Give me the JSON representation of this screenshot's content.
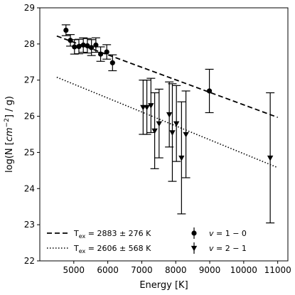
{
  "chart_data": {
    "type": "scatter",
    "xlabel": "Energy [K]",
    "ylabel": "log(N [cm⁻²] / g)",
    "ylabel_parts": {
      "pre": "log(N [",
      "cm": "cm",
      "sup": "−2",
      "post": "] / g)"
    },
    "xlim": [
      4000,
      11300
    ],
    "ylim": [
      22,
      29
    ],
    "xticks": [
      5000,
      6000,
      7000,
      8000,
      9000,
      10000,
      11000
    ],
    "yticks": [
      22,
      23,
      24,
      25,
      26,
      27,
      28,
      29
    ],
    "series": [
      {
        "name": "v = 1 − 0",
        "legend": {
          "italic": "v",
          "rest": " = 1 − 0"
        },
        "marker": "circle",
        "points": [
          {
            "x": 4770,
            "y": 28.38,
            "err": 0.15
          },
          {
            "x": 4900,
            "y": 28.1,
            "err": 0.16
          },
          {
            "x": 5020,
            "y": 27.92,
            "err": 0.2
          },
          {
            "x": 5150,
            "y": 27.93,
            "err": 0.2
          },
          {
            "x": 5280,
            "y": 27.97,
            "err": 0.2
          },
          {
            "x": 5400,
            "y": 27.95,
            "err": 0.2
          },
          {
            "x": 5520,
            "y": 27.9,
            "err": 0.22
          },
          {
            "x": 5650,
            "y": 27.97,
            "err": 0.2
          },
          {
            "x": 5790,
            "y": 27.72,
            "err": 0.2
          },
          {
            "x": 5970,
            "y": 27.78,
            "err": 0.2
          },
          {
            "x": 6140,
            "y": 27.48,
            "err": 0.22
          },
          {
            "x": 8990,
            "y": 26.7,
            "err": 0.6
          }
        ]
      },
      {
        "name": "v = 2 − 1",
        "legend": {
          "italic": "v",
          "rest": " = 2 − 1"
        },
        "marker": "triangle-down",
        "points": [
          {
            "x": 7040,
            "y": 26.25,
            "err": 0.75
          },
          {
            "x": 7150,
            "y": 26.25,
            "err": 0.75
          },
          {
            "x": 7270,
            "y": 26.3,
            "err": 0.75
          },
          {
            "x": 7380,
            "y": 25.6,
            "err": 1.05
          },
          {
            "x": 7510,
            "y": 25.8,
            "err": 0.95
          },
          {
            "x": 7810,
            "y": 26.05,
            "err": 0.9
          },
          {
            "x": 7900,
            "y": 25.55,
            "err": 1.35
          },
          {
            "x": 8020,
            "y": 25.8,
            "err": 1.05
          },
          {
            "x": 8170,
            "y": 24.85,
            "err": 1.55
          },
          {
            "x": 8300,
            "y": 25.5,
            "err": 1.2
          },
          {
            "x": 10780,
            "y": 24.85,
            "err": 1.8
          }
        ]
      }
    ],
    "fits": [
      {
        "label": "T_ex = 2883 ± 276 K",
        "legend": {
          "T": "T",
          "sub": "ex",
          "rest": " = 2883 ± 276 K"
        },
        "style": "dashed",
        "x": [
          4500,
          11000
        ],
        "y": [
          28.22,
          25.97
        ]
      },
      {
        "label": "T_ex = 2606 ± 568 K",
        "legend": {
          "T": "T",
          "sub": "ex",
          "rest": " = 2606 ± 568 K"
        },
        "style": "dotted",
        "x": [
          4500,
          11000
        ],
        "y": [
          27.08,
          24.58
        ]
      }
    ],
    "legend_location": "lower center, two columns",
    "grid": false
  }
}
